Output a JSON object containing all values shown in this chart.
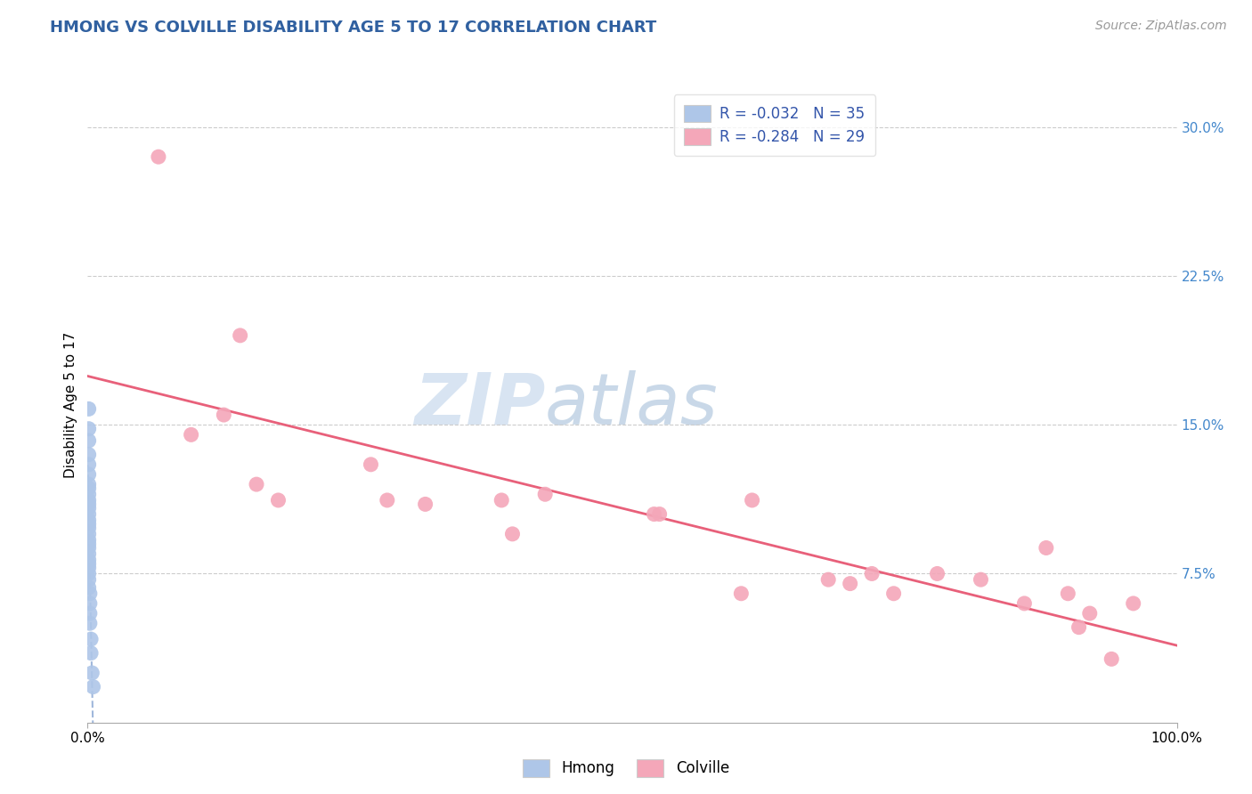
{
  "title": "HMONG VS COLVILLE DISABILITY AGE 5 TO 17 CORRELATION CHART",
  "source_text": "Source: ZipAtlas.com",
  "ylabel": "Disability Age 5 to 17",
  "xlim": [
    0.0,
    1.0
  ],
  "ylim": [
    0.0,
    0.32
  ],
  "xtick_labels": [
    "0.0%",
    "100.0%"
  ],
  "ytick_labels": [
    "7.5%",
    "15.0%",
    "22.5%",
    "30.0%"
  ],
  "ytick_values": [
    0.075,
    0.15,
    0.225,
    0.3
  ],
  "legend_r_hmong": "R = -0.032",
  "legend_n_hmong": "N = 35",
  "legend_r_colville": "R = -0.284",
  "legend_n_colville": "N = 29",
  "hmong_color": "#aec6e8",
  "colville_color": "#f4a7b9",
  "hmong_line_color": "#7799cc",
  "colville_line_color": "#e8607a",
  "background_color": "#ffffff",
  "grid_color": "#cccccc",
  "title_color": "#3060a0",
  "source_color": "#999999",
  "watermark_color": "#c8dff0",
  "hmong_x": [
    0.001,
    0.001,
    0.001,
    0.001,
    0.001,
    0.001,
    0.001,
    0.001,
    0.001,
    0.001,
    0.001,
    0.001,
    0.001,
    0.001,
    0.001,
    0.001,
    0.001,
    0.001,
    0.001,
    0.001,
    0.001,
    0.001,
    0.001,
    0.001,
    0.001,
    0.001,
    0.001,
    0.002,
    0.002,
    0.002,
    0.002,
    0.003,
    0.003,
    0.004,
    0.005
  ],
  "hmong_y": [
    0.158,
    0.148,
    0.142,
    0.135,
    0.13,
    0.125,
    0.12,
    0.118,
    0.115,
    0.112,
    0.11,
    0.108,
    0.105,
    0.102,
    0.1,
    0.098,
    0.095,
    0.092,
    0.09,
    0.088,
    0.085,
    0.082,
    0.08,
    0.078,
    0.075,
    0.072,
    0.068,
    0.065,
    0.06,
    0.055,
    0.05,
    0.042,
    0.035,
    0.025,
    0.018
  ],
  "colville_x": [
    0.065,
    0.095,
    0.14,
    0.155,
    0.175,
    0.26,
    0.275,
    0.31,
    0.38,
    0.39,
    0.52,
    0.525,
    0.6,
    0.61,
    0.68,
    0.72,
    0.74,
    0.78,
    0.82,
    0.86,
    0.88,
    0.9,
    0.91,
    0.92,
    0.94,
    0.96,
    0.125,
    0.42,
    0.7
  ],
  "colville_y": [
    0.285,
    0.145,
    0.195,
    0.12,
    0.112,
    0.13,
    0.112,
    0.11,
    0.112,
    0.095,
    0.105,
    0.105,
    0.065,
    0.112,
    0.072,
    0.075,
    0.065,
    0.075,
    0.072,
    0.06,
    0.088,
    0.065,
    0.048,
    0.055,
    0.032,
    0.06,
    0.155,
    0.115,
    0.07
  ]
}
